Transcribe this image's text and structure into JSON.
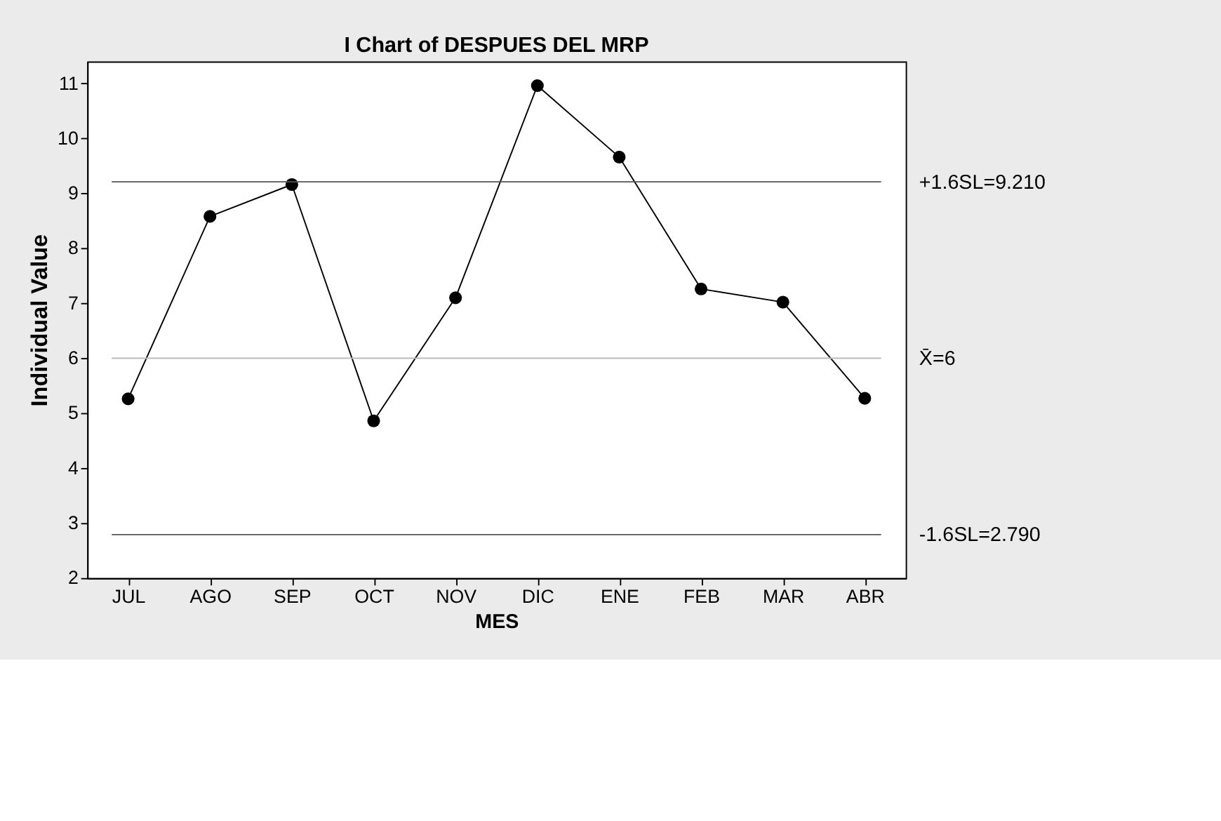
{
  "chart_data": {
    "type": "line",
    "title": "I Chart of DESPUES DEL MRP",
    "xlabel": "MES",
    "ylabel": "Individual Value",
    "categories": [
      "JUL",
      "AGO",
      "SEP",
      "OCT",
      "NOV",
      "DIC",
      "ENE",
      "FEB",
      "MAR",
      "ABR"
    ],
    "series": [
      {
        "color": "#000000",
        "values": [
          5.26,
          8.58,
          9.16,
          4.86,
          7.1,
          10.96,
          9.66,
          7.26,
          7.02,
          5.27
        ]
      }
    ],
    "marker": "circle",
    "line_style": "solid",
    "grid": false,
    "ylim": [
      2,
      11.4
    ],
    "yticks": [
      2,
      3,
      4,
      5,
      6,
      7,
      8,
      9,
      10,
      11
    ],
    "ref_lines": [
      {
        "axis": "y",
        "value": 9.21,
        "label": "+1.6SL=9.210",
        "color": "#555555"
      },
      {
        "axis": "y",
        "value": 6,
        "label": "X̄=6",
        "color": "#bbbbbb"
      },
      {
        "axis": "y",
        "value": 2.79,
        "label": "-1.6SL=2.790",
        "color": "#555555"
      }
    ]
  }
}
